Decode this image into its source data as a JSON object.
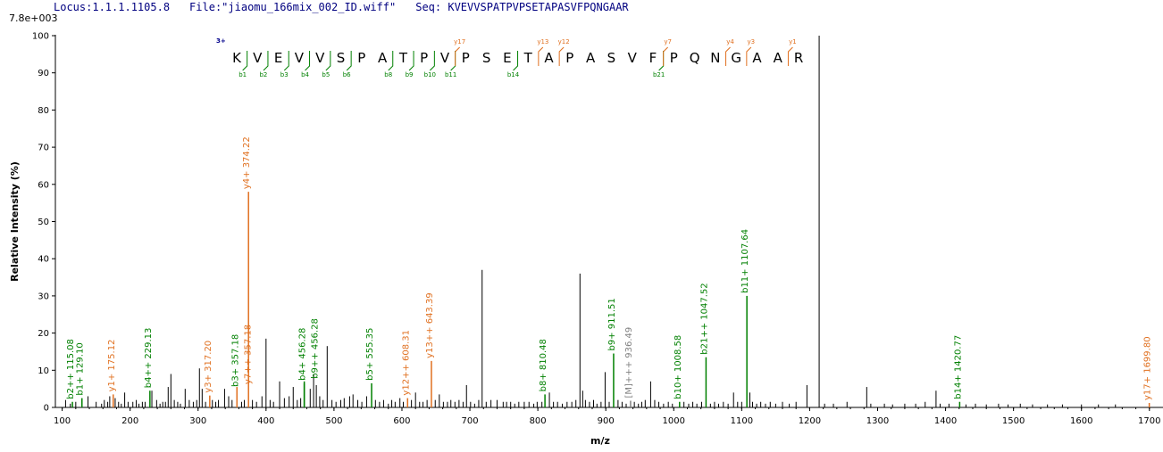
{
  "header": {
    "locus": "Locus:1.1.1.1105.8",
    "file": "File:\"jiaomu_166mix_002_ID.wiff\"",
    "seq": "Seq: KVEVVSPATPVPSETAPASVFPQNGAAR"
  },
  "scale_label": "7.8e+003",
  "colors": {
    "b_ion": "#008000",
    "y_ion": "#e07020",
    "other": "#808080",
    "peak": "#000000",
    "charge": "#00008b"
  },
  "chart_data": {
    "type": "bar",
    "xlabel": "m/z",
    "ylabel": "Relative  Intensity (%)",
    "xlim": [
      90,
      1720
    ],
    "ylim": [
      0,
      100
    ],
    "xticks": [
      100,
      200,
      300,
      400,
      500,
      600,
      700,
      800,
      900,
      1000,
      1100,
      1200,
      1300,
      1400,
      1500,
      1600,
      1700
    ],
    "yticks": [
      0,
      10,
      20,
      30,
      40,
      50,
      60,
      70,
      80,
      90,
      100
    ],
    "peptide": {
      "charge": "3+",
      "sequence": [
        "K",
        "V",
        "E",
        "V",
        "V",
        "S",
        "P",
        "A",
        "T",
        "P",
        "V",
        "P",
        "S",
        "E",
        "T",
        "A",
        "P",
        "A",
        "S",
        "V",
        "F",
        "P",
        "Q",
        "N",
        "G",
        "A",
        "A",
        "R"
      ],
      "b_ions": [
        {
          "after": 1,
          "label": "b1"
        },
        {
          "after": 2,
          "label": "b2"
        },
        {
          "after": 3,
          "label": "b3"
        },
        {
          "after": 4,
          "label": "b4"
        },
        {
          "after": 5,
          "label": "b5"
        },
        {
          "after": 6,
          "label": "b6"
        },
        {
          "after": 8,
          "label": "b8"
        },
        {
          "after": 9,
          "label": "b9"
        },
        {
          "after": 10,
          "label": "b10"
        },
        {
          "after": 11,
          "label": "b11"
        },
        {
          "after": 14,
          "label": "b14"
        },
        {
          "after": 21,
          "label": "b21"
        }
      ],
      "y_ions": [
        {
          "after": 11,
          "label": "y17"
        },
        {
          "after": 15,
          "label": "y13"
        },
        {
          "after": 16,
          "label": "y12"
        },
        {
          "after": 21,
          "label": "y7"
        },
        {
          "after": 24,
          "label": "y4"
        },
        {
          "after": 25,
          "label": "y3"
        },
        {
          "after": 27,
          "label": "y1"
        }
      ]
    },
    "annotated_peaks": [
      {
        "mz": 115.08,
        "intensity": 1.5,
        "label": "b2++ 115.08",
        "type": "b"
      },
      {
        "mz": 129.1,
        "intensity": 2.5,
        "label": "b1+ 129.10",
        "type": "b"
      },
      {
        "mz": 175.12,
        "intensity": 3.5,
        "label": "y1+ 175.12",
        "type": "y"
      },
      {
        "mz": 229.13,
        "intensity": 4.5,
        "label": "b4++ 229.13",
        "type": "b"
      },
      {
        "mz": 317.2,
        "intensity": 3.2,
        "label": "y3+ 317.20",
        "type": "y"
      },
      {
        "mz": 357.18,
        "intensity": 4.8,
        "label": "b3+ 357.18",
        "type": "b"
      },
      {
        "mz": 357.18,
        "intensity": 5.5,
        "label": "y7++ 357.18",
        "type": "y"
      },
      {
        "mz": 374.22,
        "intensity": 58,
        "label": "y4+ 374.22",
        "type": "y"
      },
      {
        "mz": 456.28,
        "intensity": 6.5,
        "label": "b4+ 456.28",
        "type": "b"
      },
      {
        "mz": 456.28,
        "intensity": 7.0,
        "label": "b9++ 456.28",
        "type": "b"
      },
      {
        "mz": 555.35,
        "intensity": 6.5,
        "label": "b5+ 555.35",
        "type": "b"
      },
      {
        "mz": 608.31,
        "intensity": 2.5,
        "label": "y12++ 608.31",
        "type": "y"
      },
      {
        "mz": 643.39,
        "intensity": 12.5,
        "label": "y13++ 643.39",
        "type": "y"
      },
      {
        "mz": 810.48,
        "intensity": 3.5,
        "label": "b8+ 810.48",
        "type": "b"
      },
      {
        "mz": 911.51,
        "intensity": 14.5,
        "label": "b9+ 911.51",
        "type": "b"
      },
      {
        "mz": 936.49,
        "intensity": 1.8,
        "label": "[M]+++ 936.49",
        "type": "other"
      },
      {
        "mz": 1008.58,
        "intensity": 1.5,
        "label": "b10+ 1008.58",
        "type": "b"
      },
      {
        "mz": 1047.52,
        "intensity": 13.5,
        "label": "b21++ 1047.52",
        "type": "b"
      },
      {
        "mz": 1107.64,
        "intensity": 30,
        "label": "b11+ 1107.64",
        "type": "b"
      },
      {
        "mz": 1420.77,
        "intensity": 1.5,
        "label": "b14+ 1420.77",
        "type": "b"
      },
      {
        "mz": 1699.8,
        "intensity": 1.2,
        "label": "y17+ 1699.80",
        "type": "y"
      }
    ],
    "unlabeled_peaks": [
      [
        105,
        2
      ],
      [
        112,
        1
      ],
      [
        120,
        1.5
      ],
      [
        138,
        3
      ],
      [
        150,
        1.5
      ],
      [
        158,
        1
      ],
      [
        162,
        2
      ],
      [
        167,
        1.5
      ],
      [
        170,
        3
      ],
      [
        178,
        2.5
      ],
      [
        183,
        1.5
      ],
      [
        187,
        1
      ],
      [
        192,
        4
      ],
      [
        197,
        1.5
      ],
      [
        204,
        1.5
      ],
      [
        209,
        2
      ],
      [
        213,
        1
      ],
      [
        218,
        1.5
      ],
      [
        222,
        1.5
      ],
      [
        232,
        4.5
      ],
      [
        239,
        2
      ],
      [
        244,
        1
      ],
      [
        248,
        1.5
      ],
      [
        252,
        1.5
      ],
      [
        256,
        5.5
      ],
      [
        260,
        9
      ],
      [
        265,
        2
      ],
      [
        270,
        1.5
      ],
      [
        274,
        1
      ],
      [
        281,
        5
      ],
      [
        287,
        2
      ],
      [
        293,
        1.5
      ],
      [
        298,
        2
      ],
      [
        302,
        10.5
      ],
      [
        306,
        5
      ],
      [
        311,
        1.5
      ],
      [
        321,
        2
      ],
      [
        326,
        1.5
      ],
      [
        330,
        2
      ],
      [
        339,
        5
      ],
      [
        345,
        3
      ],
      [
        350,
        2
      ],
      [
        364,
        1.5
      ],
      [
        368,
        2
      ],
      [
        380,
        2
      ],
      [
        386,
        1.5
      ],
      [
        394,
        3
      ],
      [
        400,
        18.5
      ],
      [
        406,
        2
      ],
      [
        411,
        1.5
      ],
      [
        420,
        7
      ],
      [
        427,
        2.5
      ],
      [
        434,
        3
      ],
      [
        440,
        5.5
      ],
      [
        446,
        2
      ],
      [
        451,
        2.5
      ],
      [
        465,
        5
      ],
      [
        470,
        9
      ],
      [
        474,
        6
      ],
      [
        479,
        3
      ],
      [
        484,
        2
      ],
      [
        490,
        16.5
      ],
      [
        497,
        2
      ],
      [
        503,
        1.5
      ],
      [
        510,
        2
      ],
      [
        515,
        2.5
      ],
      [
        523,
        3
      ],
      [
        528,
        3.5
      ],
      [
        535,
        2
      ],
      [
        541,
        1.5
      ],
      [
        548,
        3
      ],
      [
        561,
        2
      ],
      [
        567,
        1.5
      ],
      [
        573,
        2
      ],
      [
        580,
        1
      ],
      [
        585,
        2
      ],
      [
        590,
        1.5
      ],
      [
        597,
        2.5
      ],
      [
        602,
        1.5
      ],
      [
        614,
        2
      ],
      [
        620,
        4
      ],
      [
        626,
        1.5
      ],
      [
        631,
        1.5
      ],
      [
        637,
        2
      ],
      [
        649,
        2
      ],
      [
        655,
        3.5
      ],
      [
        661,
        1.5
      ],
      [
        667,
        1.5
      ],
      [
        672,
        2
      ],
      [
        678,
        1.5
      ],
      [
        684,
        2
      ],
      [
        690,
        1.5
      ],
      [
        695,
        6
      ],
      [
        701,
        1.5
      ],
      [
        707,
        1
      ],
      [
        713,
        2
      ],
      [
        718,
        37
      ],
      [
        724,
        1.5
      ],
      [
        731,
        2
      ],
      [
        740,
        2
      ],
      [
        749,
        1.5
      ],
      [
        754,
        1.5
      ],
      [
        760,
        1.5
      ],
      [
        766,
        1
      ],
      [
        772,
        1.5
      ],
      [
        780,
        1.5
      ],
      [
        787,
        1.5
      ],
      [
        794,
        1
      ],
      [
        799,
        1.5
      ],
      [
        806,
        1.5
      ],
      [
        817,
        4
      ],
      [
        823,
        1.5
      ],
      [
        829,
        1.5
      ],
      [
        836,
        1
      ],
      [
        843,
        1.5
      ],
      [
        850,
        1.5
      ],
      [
        856,
        2
      ],
      [
        862,
        36
      ],
      [
        866,
        4.5
      ],
      [
        870,
        2
      ],
      [
        876,
        1.5
      ],
      [
        882,
        2
      ],
      [
        887,
        1
      ],
      [
        893,
        1.5
      ],
      [
        899,
        9.5
      ],
      [
        905,
        1.5
      ],
      [
        918,
        2
      ],
      [
        924,
        1.5
      ],
      [
        930,
        1
      ],
      [
        942,
        1.5
      ],
      [
        948,
        1
      ],
      [
        953,
        1.5
      ],
      [
        958,
        2
      ],
      [
        966,
        7
      ],
      [
        972,
        2
      ],
      [
        978,
        1.5
      ],
      [
        985,
        1
      ],
      [
        992,
        1.5
      ],
      [
        998,
        1
      ],
      [
        1015,
        1.5
      ],
      [
        1022,
        1
      ],
      [
        1028,
        1.5
      ],
      [
        1034,
        1
      ],
      [
        1041,
        1.5
      ],
      [
        1054,
        1
      ],
      [
        1060,
        1.5
      ],
      [
        1066,
        1
      ],
      [
        1073,
        1.5
      ],
      [
        1080,
        1
      ],
      [
        1088,
        4
      ],
      [
        1094,
        1.5
      ],
      [
        1100,
        1.5
      ],
      [
        1112,
        4
      ],
      [
        1116,
        1.5
      ],
      [
        1122,
        1
      ],
      [
        1128,
        1.5
      ],
      [
        1135,
        1
      ],
      [
        1142,
        1.5
      ],
      [
        1150,
        1
      ],
      [
        1160,
        1.5
      ],
      [
        1170,
        1
      ],
      [
        1180,
        1.5
      ],
      [
        1196,
        6
      ],
      [
        1214,
        100
      ],
      [
        1222,
        1
      ],
      [
        1235,
        1
      ],
      [
        1255,
        1.5
      ],
      [
        1284,
        5.5
      ],
      [
        1290,
        1
      ],
      [
        1310,
        1
      ],
      [
        1322,
        0.8
      ],
      [
        1340,
        1
      ],
      [
        1356,
        1
      ],
      [
        1370,
        1.5
      ],
      [
        1386,
        4.5
      ],
      [
        1392,
        1
      ],
      [
        1405,
        1
      ],
      [
        1430,
        0.8
      ],
      [
        1444,
        1
      ],
      [
        1460,
        0.8
      ],
      [
        1478,
        1
      ],
      [
        1492,
        0.8
      ],
      [
        1510,
        1
      ],
      [
        1528,
        0.8
      ],
      [
        1550,
        0.8
      ],
      [
        1572,
        0.8
      ],
      [
        1600,
        0.8
      ],
      [
        1625,
        0.8
      ],
      [
        1650,
        0.8
      ]
    ]
  }
}
